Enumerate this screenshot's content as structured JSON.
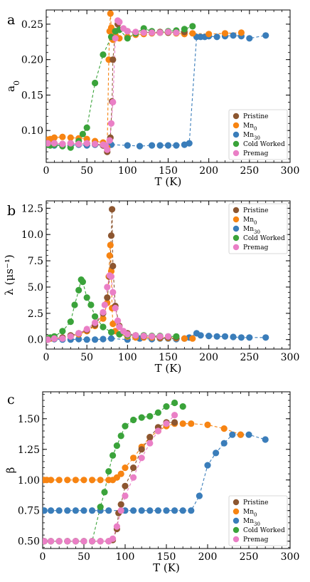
{
  "colors": {
    "Pristine": "#8c5630",
    "Mn0": "#f78412",
    "Mn30": "#3a7dba",
    "ColdWorked": "#3aa33a",
    "Premag": "#ea7fc6"
  },
  "chart_data": [
    {
      "type": "scatter",
      "panel_letter": "a",
      "xlabel": "T (K)",
      "ylabel": "a",
      "ylabel_sub": "0",
      "xlim": [
        0,
        300
      ],
      "ylim": [
        0.055,
        0.27
      ],
      "xticks": [
        "0",
        "50",
        "100",
        "150",
        "200",
        "250",
        "300"
      ],
      "yticks": [
        "0.10",
        "0.15",
        "0.20",
        "0.25"
      ],
      "ytick_values": [
        0.1,
        0.15,
        0.2,
        0.25
      ],
      "legend": {
        "placement": "lower-right",
        "entries": [
          {
            "key": "Pristine",
            "label": "Pristine",
            "sub": ""
          },
          {
            "key": "Mn0",
            "label": "Mn",
            "sub": "0"
          },
          {
            "key": "Mn30",
            "label": "Mn",
            "sub": "30"
          },
          {
            "key": "ColdWorked",
            "label": "Cold Worked",
            "sub": ""
          },
          {
            "key": "Premag",
            "label": "Premag",
            "sub": ""
          }
        ]
      },
      "series": [
        {
          "key": "Mn30",
          "x": [
            2,
            5,
            10,
            20,
            30,
            40,
            50,
            60,
            70,
            80,
            100,
            115,
            130,
            140,
            150,
            160,
            170,
            176,
            185,
            190,
            195,
            200,
            210,
            220,
            230,
            240,
            250,
            270
          ],
          "y": [
            0.08,
            0.08,
            0.079,
            0.08,
            0.079,
            0.08,
            0.079,
            0.08,
            0.079,
            0.08,
            0.079,
            0.078,
            0.079,
            0.079,
            0.079,
            0.079,
            0.08,
            0.082,
            0.232,
            0.232,
            0.232,
            0.233,
            0.232,
            0.233,
            0.234,
            0.233,
            0.23,
            0.234
          ]
        },
        {
          "key": "Mn0",
          "x": [
            2,
            5,
            10,
            20,
            30,
            40,
            50,
            60,
            70,
            75,
            77,
            78,
            79,
            80,
            81,
            82,
            85,
            90,
            100,
            110,
            120,
            130,
            140,
            150,
            160,
            170,
            180,
            200,
            220,
            240
          ],
          "y": [
            0.087,
            0.088,
            0.09,
            0.091,
            0.09,
            0.089,
            0.088,
            0.085,
            0.083,
            0.076,
            0.2,
            0.24,
            0.265,
            0.245,
            0.232,
            0.228,
            0.235,
            0.23,
            0.232,
            0.235,
            0.236,
            0.237,
            0.238,
            0.238,
            0.237,
            0.236,
            0.237,
            0.236,
            0.237,
            0.238
          ]
        },
        {
          "key": "Pristine",
          "x": [
            2,
            10,
            20,
            30,
            40,
            50,
            60,
            70,
            75,
            79,
            81,
            82,
            85,
            88,
            90,
            100,
            110,
            120,
            130,
            140,
            150,
            160,
            170
          ],
          "y": [
            0.082,
            0.082,
            0.081,
            0.082,
            0.081,
            0.082,
            0.081,
            0.079,
            0.07,
            0.09,
            0.141,
            0.2,
            0.24,
            0.25,
            0.242,
            0.24,
            0.238,
            0.239,
            0.238,
            0.239,
            0.238,
            0.239,
            0.239
          ]
        },
        {
          "key": "ColdWorked",
          "x": [
            2,
            5,
            10,
            20,
            30,
            40,
            45,
            50,
            60,
            70,
            80,
            85,
            90,
            100,
            110,
            120,
            130,
            140,
            150,
            160,
            170,
            180
          ],
          "y": [
            0.08,
            0.079,
            0.08,
            0.078,
            0.076,
            0.085,
            0.095,
            0.104,
            0.167,
            0.207,
            0.232,
            0.24,
            0.242,
            0.23,
            0.237,
            0.244,
            0.24,
            0.238,
            0.24,
            0.241,
            0.243,
            0.247
          ]
        },
        {
          "key": "Premag",
          "x": [
            2,
            10,
            20,
            30,
            40,
            50,
            60,
            70,
            73,
            75,
            78,
            80,
            82,
            85,
            88,
            90,
            95,
            100,
            110,
            120,
            130,
            140,
            150,
            160
          ],
          "y": [
            0.082,
            0.082,
            0.081,
            0.082,
            0.081,
            0.082,
            0.081,
            0.08,
            0.079,
            0.073,
            0.086,
            0.11,
            0.14,
            0.23,
            0.255,
            0.253,
            0.244,
            0.24,
            0.239,
            0.238,
            0.238,
            0.238,
            0.239,
            0.238
          ]
        }
      ]
    },
    {
      "type": "scatter",
      "panel_letter": "b",
      "xlabel": "T (K)",
      "ylabel": "λ (μs⁻¹)",
      "ylabel_sub": "",
      "xlim": [
        0,
        300
      ],
      "ylim": [
        -0.9,
        13.2
      ],
      "xticks": [
        "0",
        "50",
        "100",
        "150",
        "200",
        "250",
        "300"
      ],
      "yticks": [
        "0.0",
        "2.5",
        "5.0",
        "7.5",
        "10.0",
        "12.5"
      ],
      "ytick_values": [
        0,
        2.5,
        5,
        7.5,
        10,
        12.5
      ],
      "legend": {
        "placement": "upper-right",
        "entries": [
          {
            "key": "Pristine",
            "label": "Pristine",
            "sub": ""
          },
          {
            "key": "Mn0",
            "label": "Mn",
            "sub": "0"
          },
          {
            "key": "Mn30",
            "label": "Mn",
            "sub": "30"
          },
          {
            "key": "ColdWorked",
            "label": "Cold Worked",
            "sub": ""
          },
          {
            "key": "Premag",
            "label": "Premag",
            "sub": ""
          }
        ]
      },
      "series": [
        {
          "key": "Mn30",
          "x": [
            2,
            5,
            10,
            20,
            30,
            40,
            50,
            60,
            70,
            80,
            100,
            115,
            130,
            140,
            150,
            160,
            170,
            176,
            185,
            190,
            200,
            210,
            220,
            230,
            240,
            250,
            270
          ],
          "y": [
            0.1,
            0.1,
            0.05,
            0.0,
            0.0,
            0.05,
            0.0,
            0.0,
            0.05,
            0.1,
            0.0,
            0.1,
            0.05,
            0.1,
            0.1,
            0.05,
            0.1,
            0.2,
            0.6,
            0.4,
            0.35,
            0.3,
            0.3,
            0.25,
            0.2,
            0.2,
            0.2
          ]
        },
        {
          "key": "Mn0",
          "x": [
            2,
            5,
            10,
            20,
            30,
            40,
            50,
            60,
            70,
            75,
            77,
            78,
            79,
            80,
            81,
            82,
            85,
            90,
            100,
            110,
            120,
            130,
            140,
            150,
            160,
            170,
            180
          ],
          "y": [
            0.1,
            0.1,
            0.1,
            0.2,
            0.3,
            0.5,
            0.8,
            1.3,
            2.0,
            3.5,
            6.0,
            8.0,
            9.0,
            6.5,
            3.0,
            1.5,
            0.8,
            0.5,
            0.3,
            0.2,
            0.2,
            0.2,
            0.15,
            0.15,
            0.15,
            0.1,
            0.1
          ]
        },
        {
          "key": "Pristine",
          "x": [
            2,
            10,
            20,
            30,
            40,
            50,
            60,
            70,
            75,
            78,
            80,
            81,
            82,
            85,
            90,
            100,
            110,
            120,
            130,
            140,
            150,
            160
          ],
          "y": [
            0.0,
            0.1,
            0.2,
            0.4,
            0.6,
            0.9,
            1.4,
            2.5,
            4.0,
            6.0,
            9.9,
            12.4,
            7.0,
            3.2,
            1.3,
            0.6,
            0.4,
            0.3,
            0.3,
            0.2,
            0.2,
            0.2
          ]
        },
        {
          "key": "ColdWorked",
          "x": [
            2,
            5,
            10,
            20,
            30,
            35,
            40,
            43,
            45,
            50,
            55,
            60,
            70,
            80,
            90,
            100,
            110,
            120,
            130,
            140,
            150,
            160
          ],
          "y": [
            0.1,
            0.2,
            0.3,
            0.8,
            1.7,
            3.3,
            4.7,
            5.7,
            5.5,
            4.0,
            3.3,
            2.2,
            1.2,
            0.7,
            0.5,
            0.4,
            0.4,
            0.4,
            0.35,
            0.35,
            0.3,
            0.3
          ]
        },
        {
          "key": "Premag",
          "x": [
            2,
            10,
            20,
            30,
            40,
            50,
            60,
            70,
            72,
            75,
            78,
            80,
            82,
            85,
            88,
            90,
            95,
            100,
            110,
            120,
            130,
            140,
            150
          ],
          "y": [
            0.0,
            0.1,
            0.1,
            0.3,
            0.6,
            1.0,
            1.6,
            2.6,
            3.3,
            5.0,
            6.1,
            6.0,
            4.5,
            3.0,
            1.8,
            1.2,
            0.8,
            0.5,
            0.4,
            0.35,
            0.3,
            0.3,
            0.3
          ]
        }
      ]
    },
    {
      "type": "scatter",
      "panel_letter": "c",
      "xlabel": "T (K)",
      "ylabel": "β",
      "ylabel_sub": "",
      "xlim": [
        0,
        300
      ],
      "ylim": [
        0.44,
        1.72
      ],
      "xticks": [
        "0",
        "50",
        "100",
        "150",
        "200",
        "250",
        "300"
      ],
      "yticks": [
        "0.50",
        "0.75",
        "1.00",
        "1.25",
        "1.50"
      ],
      "ytick_values": [
        0.5,
        0.75,
        1.0,
        1.25,
        1.5
      ],
      "legend": {
        "placement": "lower-right",
        "entries": [
          {
            "key": "Pristine",
            "label": "Pristine",
            "sub": ""
          },
          {
            "key": "Mn0",
            "label": "Mn",
            "sub": "0"
          },
          {
            "key": "Mn30",
            "label": "Mn",
            "sub": "30"
          },
          {
            "key": "ColdWorked",
            "label": "Cold Worked",
            "sub": ""
          },
          {
            "key": "Premag",
            "label": "Premag",
            "sub": ""
          }
        ]
      },
      "series": [
        {
          "key": "Mn30",
          "x": [
            2,
            10,
            20,
            30,
            40,
            50,
            60,
            70,
            80,
            100,
            110,
            120,
            130,
            140,
            150,
            160,
            170,
            180,
            190,
            200,
            210,
            220,
            230,
            240,
            250,
            270
          ],
          "y": [
            0.75,
            0.75,
            0.75,
            0.75,
            0.75,
            0.75,
            0.75,
            0.75,
            0.75,
            0.75,
            0.75,
            0.75,
            0.75,
            0.75,
            0.75,
            0.75,
            0.75,
            0.75,
            0.87,
            1.12,
            1.22,
            1.3,
            1.37,
            1.37,
            1.37,
            1.33
          ]
        },
        {
          "key": "Mn0",
          "x": [
            2,
            5,
            10,
            20,
            30,
            40,
            50,
            60,
            70,
            80,
            85,
            90,
            95,
            100,
            110,
            120,
            130,
            140,
            150,
            160,
            170,
            180,
            200,
            220,
            240
          ],
          "y": [
            1.0,
            1.0,
            1.0,
            1.0,
            1.0,
            1.0,
            1.0,
            1.0,
            1.0,
            1.0,
            1.0,
            1.02,
            1.05,
            1.1,
            1.18,
            1.27,
            1.35,
            1.4,
            1.44,
            1.46,
            1.46,
            1.46,
            1.45,
            1.42,
            1.37
          ]
        },
        {
          "key": "Pristine",
          "x": [
            2,
            10,
            20,
            30,
            40,
            50,
            60,
            70,
            80,
            85,
            90,
            92,
            95,
            100,
            110,
            120,
            130,
            140,
            150,
            160
          ],
          "y": [
            0.5,
            0.5,
            0.5,
            0.5,
            0.5,
            0.5,
            0.5,
            0.5,
            0.5,
            0.51,
            0.6,
            0.73,
            0.8,
            0.95,
            1.1,
            1.25,
            1.35,
            1.43,
            1.47,
            1.47
          ]
        },
        {
          "key": "ColdWorked",
          "x": [
            2,
            10,
            20,
            30,
            40,
            50,
            60,
            70,
            75,
            80,
            85,
            90,
            95,
            100,
            110,
            120,
            130,
            140,
            150,
            160,
            170
          ],
          "y": [
            0.5,
            0.5,
            0.5,
            0.5,
            0.5,
            0.5,
            0.5,
            0.78,
            0.9,
            1.07,
            1.2,
            1.28,
            1.36,
            1.44,
            1.49,
            1.51,
            1.52,
            1.55,
            1.6,
            1.63,
            1.6
          ]
        },
        {
          "key": "Premag",
          "x": [
            2,
            10,
            20,
            30,
            40,
            50,
            60,
            70,
            80,
            85,
            90,
            95,
            100,
            110,
            120,
            130,
            140,
            150,
            160
          ],
          "y": [
            0.5,
            0.5,
            0.5,
            0.5,
            0.5,
            0.5,
            0.5,
            0.5,
            0.5,
            0.52,
            0.62,
            0.75,
            0.87,
            1.02,
            1.18,
            1.3,
            1.4,
            1.46,
            1.53
          ]
        }
      ]
    }
  ]
}
